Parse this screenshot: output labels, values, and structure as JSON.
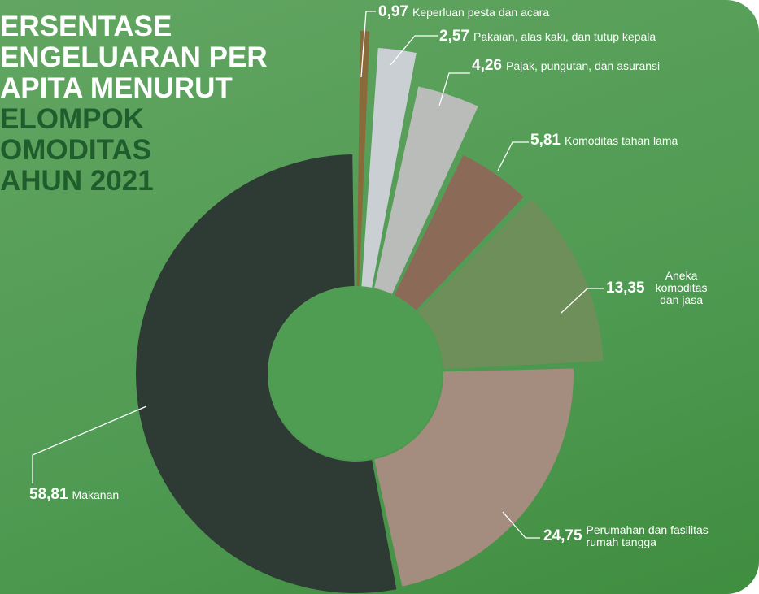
{
  "chart_data": {
    "type": "pie",
    "title_lines": [
      "ERSENTASE",
      "ENGELUARAN PER",
      "APITA MENURUT",
      "ELOMPOK",
      "OMODITAS",
      "AHUN 2021"
    ],
    "categories": [
      "Keperluan pesta dan acara",
      "Pakaian, alas kaki, dan tutup kepala",
      "Pajak, pungutan, dan asuransi",
      "Komoditas tahan lama",
      "Aneka komoditas dan jasa",
      "Perumahan dan fasilitas rumah tangga",
      "Makanan"
    ],
    "values": [
      0.97,
      2.57,
      4.26,
      5.81,
      13.35,
      24.75,
      58.81
    ],
    "value_labels": [
      "0,97",
      "2,57",
      "4,26",
      "5,81",
      "13,35",
      "24,75",
      "58,81"
    ],
    "colors": [
      "#8a6a3a",
      "#c9cfd2",
      "#b9bcb8",
      "#8c6a58",
      "#6f8f5a",
      "#a48c7e",
      "#2e3a34"
    ]
  }
}
